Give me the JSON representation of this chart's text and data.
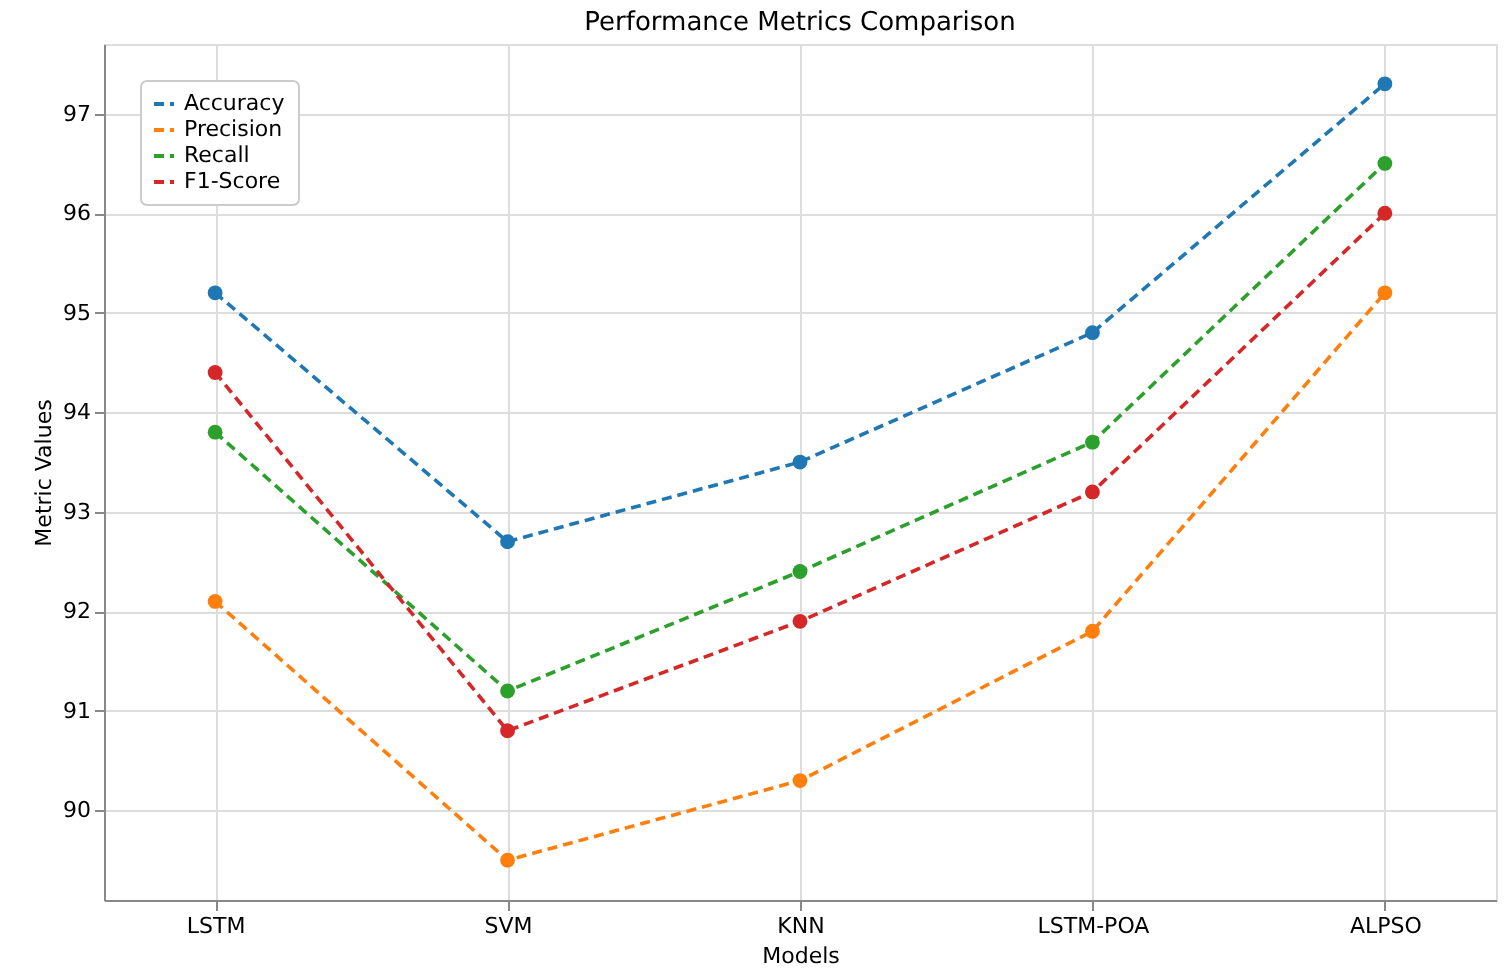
{
  "chart_data": {
    "type": "line",
    "title": "Performance Metrics Comparison",
    "xlabel": "Models",
    "ylabel": "Metric Values",
    "categories": [
      "LSTM",
      "SVM",
      "KNN",
      "LSTM-POA",
      "ALPSO"
    ],
    "series": [
      {
        "name": "Accuracy",
        "color": "#1f77b4",
        "values": [
          95.2,
          92.7,
          93.5,
          94.8,
          97.3
        ]
      },
      {
        "name": "Precision",
        "color": "#ff7f0e",
        "values": [
          92.1,
          89.5,
          90.3,
          91.8,
          95.2
        ]
      },
      {
        "name": "Recall",
        "color": "#2ca02c",
        "values": [
          93.8,
          91.2,
          92.4,
          93.7,
          96.5
        ]
      },
      {
        "name": "F1-Score",
        "color": "#d62728",
        "values": [
          94.4,
          90.8,
          91.9,
          93.2,
          96.0
        ]
      }
    ],
    "ylim": [
      89.1,
      97.7
    ],
    "yticks": [
      90,
      91,
      92,
      93,
      94,
      95,
      96,
      97
    ],
    "grid": true,
    "legend": "top left",
    "marker": "circle",
    "line_style": "dashed"
  }
}
